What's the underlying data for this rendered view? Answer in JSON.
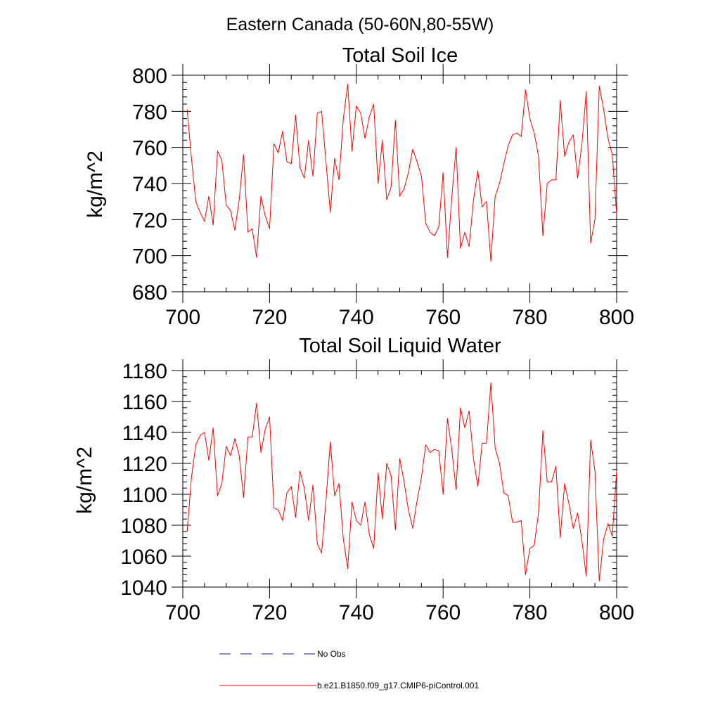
{
  "figure": {
    "title": "Eastern Canada (50-60N,80-55W)"
  },
  "chart_data": [
    {
      "type": "line",
      "title": "Total Soil Ice",
      "xlabel": "",
      "ylabel": "kg/m^2",
      "xlim": [
        700,
        800
      ],
      "ylim": [
        680,
        800
      ],
      "xticks": [
        700,
        720,
        740,
        760,
        780,
        800
      ],
      "yticks": [
        680,
        700,
        720,
        740,
        760,
        780,
        800
      ],
      "series": [
        {
          "name": "b.e21.B1850.f09_g17.CMIP6-piControl.001",
          "color": "#ff0000",
          "x": [
            701,
            702,
            703,
            704,
            705,
            706,
            707,
            708,
            709,
            710,
            711,
            712,
            713,
            714,
            715,
            716,
            717,
            718,
            719,
            720,
            721,
            722,
            723,
            724,
            725,
            726,
            727,
            728,
            729,
            730,
            731,
            732,
            733,
            734,
            735,
            736,
            737,
            738,
            739,
            740,
            741,
            742,
            743,
            744,
            745,
            746,
            747,
            748,
            749,
            750,
            751,
            752,
            753,
            754,
            755,
            756,
            757,
            758,
            759,
            760,
            761,
            762,
            763,
            764,
            765,
            766,
            767,
            768,
            769,
            770,
            771,
            772,
            773,
            774,
            775,
            776,
            777,
            778,
            779,
            780,
            781,
            782,
            783,
            784,
            785,
            786,
            787,
            788,
            789,
            790,
            791,
            792,
            793,
            794,
            795,
            796,
            797,
            798,
            799,
            800
          ],
          "values": [
            781,
            754,
            730,
            724,
            719,
            733,
            717,
            758,
            753,
            728,
            725,
            714,
            731,
            756,
            713,
            715,
            699,
            733,
            722,
            715,
            762,
            757,
            769,
            752,
            751,
            778,
            749,
            743,
            764,
            744,
            779,
            780,
            752,
            724,
            754,
            742,
            776,
            795,
            758,
            783,
            779,
            765,
            777,
            784,
            740,
            764,
            731,
            738,
            775,
            733,
            737,
            746,
            759,
            752,
            744,
            718,
            713,
            711,
            716,
            746,
            699,
            732,
            760,
            704,
            713,
            705,
            731,
            747,
            727,
            730,
            697,
            733,
            740,
            751,
            761,
            767,
            768,
            766,
            792,
            776,
            768,
            755,
            711,
            740,
            742,
            742,
            786,
            755,
            763,
            767,
            743,
            762,
            791,
            707,
            720,
            794,
            781,
            765,
            756,
            723
          ]
        }
      ]
    },
    {
      "type": "line",
      "title": "Total Soil Liquid Water",
      "xlabel": "",
      "ylabel": "kg/m^2",
      "xlim": [
        700,
        800
      ],
      "ylim": [
        1040,
        1180
      ],
      "xticks": [
        700,
        720,
        740,
        760,
        780,
        800
      ],
      "yticks": [
        1040,
        1060,
        1080,
        1100,
        1120,
        1140,
        1160,
        1180
      ],
      "series": [
        {
          "name": "b.e21.B1850.f09_g17.CMIP6-piControl.001",
          "color": "#ff0000",
          "x": [
            701,
            702,
            703,
            704,
            705,
            706,
            707,
            708,
            709,
            710,
            711,
            712,
            713,
            714,
            715,
            716,
            717,
            718,
            719,
            720,
            721,
            722,
            723,
            724,
            725,
            726,
            727,
            728,
            729,
            730,
            731,
            732,
            733,
            734,
            735,
            736,
            737,
            738,
            739,
            740,
            741,
            742,
            743,
            744,
            745,
            746,
            747,
            748,
            749,
            750,
            751,
            752,
            753,
            754,
            755,
            756,
            757,
            758,
            759,
            760,
            761,
            762,
            763,
            764,
            765,
            766,
            767,
            768,
            769,
            770,
            771,
            772,
            773,
            774,
            775,
            776,
            777,
            778,
            779,
            780,
            781,
            782,
            783,
            784,
            785,
            786,
            787,
            788,
            789,
            790,
            791,
            792,
            793,
            794,
            795,
            796,
            797,
            798,
            799,
            800
          ],
          "values": [
            1076,
            1111,
            1132,
            1138,
            1140,
            1122,
            1143,
            1099,
            1107,
            1131,
            1125,
            1136,
            1125,
            1098,
            1137,
            1137,
            1159,
            1127,
            1142,
            1150,
            1091,
            1090,
            1083,
            1101,
            1105,
            1085,
            1115,
            1104,
            1083,
            1106,
            1068,
            1062,
            1096,
            1134,
            1099,
            1107,
            1071,
            1052,
            1095,
            1083,
            1080,
            1095,
            1074,
            1065,
            1114,
            1084,
            1120,
            1112,
            1077,
            1123,
            1108,
            1090,
            1078,
            1096,
            1111,
            1132,
            1127,
            1129,
            1128,
            1100,
            1149,
            1129,
            1103,
            1156,
            1143,
            1154,
            1123,
            1105,
            1133,
            1133,
            1172,
            1130,
            1120,
            1101,
            1099,
            1082,
            1082,
            1083,
            1048,
            1065,
            1067,
            1088,
            1141,
            1108,
            1108,
            1118,
            1072,
            1107,
            1094,
            1078,
            1088,
            1070,
            1047,
            1135,
            1115,
            1044,
            1071,
            1081,
            1073,
            1115
          ]
        }
      ]
    }
  ],
  "legend": {
    "items": [
      {
        "label": "No Obs",
        "style": "dashed",
        "color": "#1a1a8c"
      },
      {
        "label": "b.e21.B1850.f09_g17.CMIP6-piControl.001",
        "style": "solid",
        "color": "#ff0000"
      }
    ]
  }
}
